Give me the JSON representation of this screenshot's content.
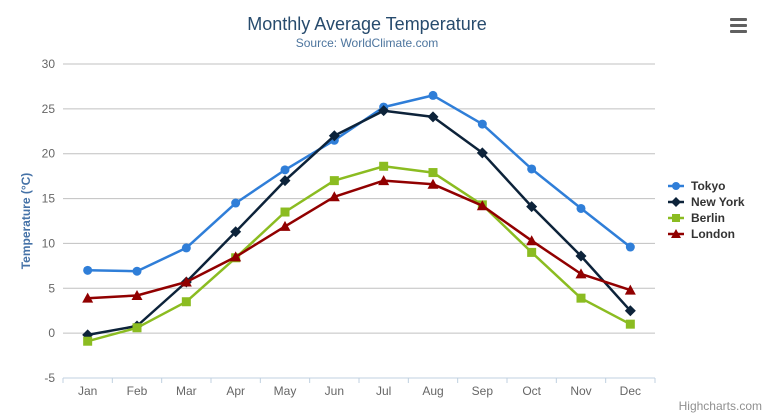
{
  "credits": {
    "label": "Highcharts.com"
  },
  "export_menu": {
    "icon": "hamburger-icon"
  },
  "chart_data": {
    "type": "line",
    "title": "Monthly Average Temperature",
    "subtitle": "Source: WorldClimate.com",
    "categories": [
      "Jan",
      "Feb",
      "Mar",
      "Apr",
      "May",
      "Jun",
      "Jul",
      "Aug",
      "Sep",
      "Oct",
      "Nov",
      "Dec"
    ],
    "xlabel": "",
    "ylabel": "Temperature (°C)",
    "ylim": [
      -5,
      30
    ],
    "yticks": [
      -5,
      0,
      5,
      10,
      15,
      20,
      25,
      30
    ],
    "grid": true,
    "legend_position": "right",
    "series": [
      {
        "name": "Tokyo",
        "color": "#2f7ed8",
        "marker": "circle",
        "values": [
          7.0,
          6.9,
          9.5,
          14.5,
          18.2,
          21.5,
          25.2,
          26.5,
          23.3,
          18.3,
          13.9,
          9.6
        ]
      },
      {
        "name": "New York",
        "color": "#0d233a",
        "marker": "diamond",
        "values": [
          -0.2,
          0.8,
          5.7,
          11.3,
          17.0,
          22.0,
          24.8,
          24.1,
          20.1,
          14.1,
          8.6,
          2.5
        ]
      },
      {
        "name": "Berlin",
        "color": "#8bbc21",
        "marker": "square",
        "values": [
          -0.9,
          0.6,
          3.5,
          8.4,
          13.5,
          17.0,
          18.6,
          17.9,
          14.3,
          9.0,
          3.9,
          1.0
        ]
      },
      {
        "name": "London",
        "color": "#910000",
        "marker": "triangle",
        "values": [
          3.9,
          4.2,
          5.7,
          8.5,
          11.9,
          15.2,
          17.0,
          16.6,
          14.2,
          10.3,
          6.6,
          4.8
        ]
      }
    ],
    "colors": {
      "title": "#274b6d",
      "subtitle": "#4d759e",
      "axis_title": "#4572a7",
      "axis_labels": "#666666",
      "grid_line": "#c0c0c0",
      "axis_line": "#c0d0e0",
      "legend_text": "#333333",
      "credits": "#909090",
      "menu_icon": "#606060"
    }
  }
}
